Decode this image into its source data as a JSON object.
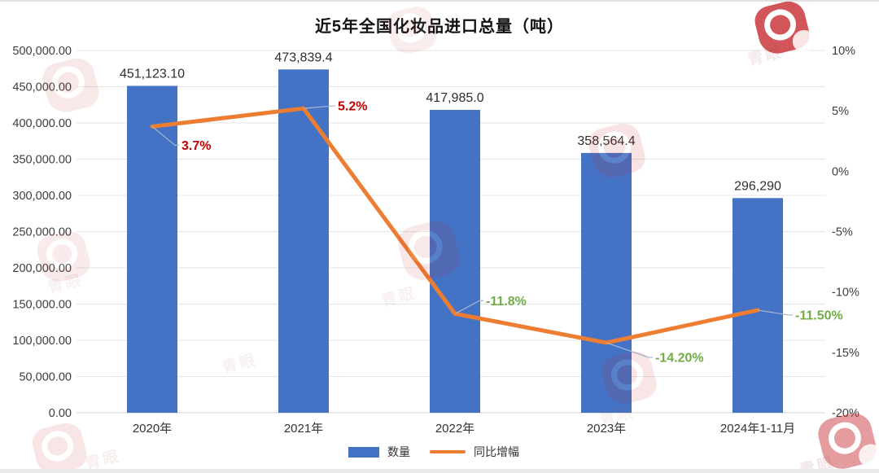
{
  "title": "近5年全国化妆品进口总量（吨）",
  "watermark": {
    "text": "青眼"
  },
  "legend": {
    "items": [
      "数量",
      "同比增幅"
    ],
    "position": "bottom"
  },
  "chart_data": {
    "type": "bar",
    "title": "近5年全国化妆品进口总量（吨）",
    "categories": [
      "2020年",
      "2021年",
      "2022年",
      "2023年",
      "2024年1-11月"
    ],
    "series": [
      {
        "name": "数量",
        "type": "bar",
        "axis": "left",
        "color": "#4472C4",
        "values": [
          451123.1,
          473839.4,
          417985.0,
          358564.4,
          296290
        ],
        "labels": [
          "451,123.10",
          "473,839.4",
          "417,985.0",
          "358,564.4",
          "296,290"
        ]
      },
      {
        "name": "同比增幅",
        "type": "line",
        "axis": "right",
        "color": "#ED7D31",
        "values": [
          3.7,
          5.2,
          -11.8,
          -14.2,
          -11.5
        ],
        "labels": [
          "3.7%",
          "5.2%",
          "-11.8%",
          "-14.20%",
          "-11.50%"
        ]
      }
    ],
    "left_axis": {
      "min": 0,
      "max": 500000,
      "step": 50000,
      "tick_labels": [
        "500,000.00",
        "450,000.00",
        "400,000.00",
        "350,000.00",
        "300,000.00",
        "250,000.00",
        "200,000.00",
        "150,000.00",
        "100,000.00",
        "50,000.00",
        "0.00"
      ]
    },
    "right_axis": {
      "min": -20,
      "max": 10,
      "step": 5,
      "tick_labels": [
        "10%",
        "5%",
        "0%",
        "-5%",
        "-10%",
        "-15%",
        "-20%"
      ]
    },
    "point_label_colors": {
      "positive": "#C00000",
      "negative": "#70AD47"
    },
    "grid": true,
    "legend_position": "bottom"
  }
}
